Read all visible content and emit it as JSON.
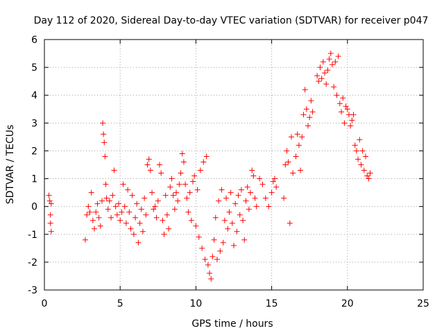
{
  "chart_data": {
    "type": "scatter",
    "title": "Day 112 of 2020, Sidereal Day-to-day VTEC variation (SDTVAR) for receiver p047",
    "xlabel": "GPS time / hours",
    "ylabel": "SDTVAR / TECUs",
    "xlim": [
      0,
      25
    ],
    "ylim": [
      -3,
      6
    ],
    "xticks": [
      "0",
      "5",
      "10",
      "15",
      "20",
      "25"
    ],
    "yticks": [
      "-3",
      "-2",
      "-1",
      "0",
      "1",
      "2",
      "3",
      "4",
      "5",
      "6"
    ],
    "xtick_values": [
      0,
      5,
      10,
      15,
      20,
      25
    ],
    "ytick_values": [
      -3,
      -2,
      -1,
      0,
      1,
      2,
      3,
      4,
      5,
      6
    ],
    "grid": true,
    "marker": "+",
    "color": "#ff0000",
    "series": [
      {
        "name": "SDTVAR",
        "points": [
          [
            0.3,
            0.4
          ],
          [
            0.35,
            0.2
          ],
          [
            0.4,
            -0.3
          ],
          [
            0.4,
            -0.6
          ],
          [
            0.45,
            -0.9
          ],
          [
            0.45,
            0.1
          ],
          [
            2.7,
            -1.2
          ],
          [
            2.8,
            -0.3
          ],
          [
            2.9,
            0.0
          ],
          [
            3.0,
            -0.2
          ],
          [
            3.1,
            0.5
          ],
          [
            3.2,
            -0.5
          ],
          [
            3.3,
            -0.8
          ],
          [
            3.4,
            -0.2
          ],
          [
            3.5,
            0.1
          ],
          [
            3.6,
            -0.4
          ],
          [
            3.7,
            -0.7
          ],
          [
            3.8,
            0.2
          ],
          [
            3.85,
            3.0
          ],
          [
            3.9,
            2.6
          ],
          [
            3.95,
            2.3
          ],
          [
            4.0,
            1.8
          ],
          [
            4.05,
            0.8
          ],
          [
            4.1,
            0.3
          ],
          [
            4.2,
            -0.1
          ],
          [
            4.3,
            0.2
          ],
          [
            4.4,
            -0.4
          ],
          [
            4.5,
            0.4
          ],
          [
            4.6,
            1.3
          ],
          [
            4.7,
            0.0
          ],
          [
            4.8,
            -0.3
          ],
          [
            4.9,
            0.1
          ],
          [
            5.0,
            -0.5
          ],
          [
            5.1,
            -0.2
          ],
          [
            5.2,
            0.8
          ],
          [
            5.3,
            0.0
          ],
          [
            5.4,
            -0.6
          ],
          [
            5.5,
            0.6
          ],
          [
            5.6,
            -0.2
          ],
          [
            5.7,
            -0.8
          ],
          [
            5.8,
            0.4
          ],
          [
            5.9,
            -1.0
          ],
          [
            6.0,
            -0.4
          ],
          [
            6.1,
            0.1
          ],
          [
            6.2,
            -1.3
          ],
          [
            6.3,
            -0.6
          ],
          [
            6.4,
            -0.1
          ],
          [
            6.5,
            -0.9
          ],
          [
            6.6,
            0.3
          ],
          [
            6.7,
            -0.3
          ],
          [
            6.8,
            1.5
          ],
          [
            6.9,
            1.7
          ],
          [
            7.0,
            1.3
          ],
          [
            7.1,
            0.5
          ],
          [
            7.2,
            -0.1
          ],
          [
            7.3,
            0.0
          ],
          [
            7.4,
            -0.4
          ],
          [
            7.5,
            0.2
          ],
          [
            7.6,
            1.5
          ],
          [
            7.7,
            1.2
          ],
          [
            7.8,
            -0.5
          ],
          [
            7.9,
            -1.0
          ],
          [
            8.0,
            0.4
          ],
          [
            8.1,
            -0.3
          ],
          [
            8.2,
            -0.8
          ],
          [
            8.3,
            0.7
          ],
          [
            8.4,
            1.0
          ],
          [
            8.5,
            0.4
          ],
          [
            8.6,
            -0.1
          ],
          [
            8.7,
            0.5
          ],
          [
            8.8,
            0.2
          ],
          [
            8.9,
            0.8
          ],
          [
            9.0,
            1.2
          ],
          [
            9.1,
            1.9
          ],
          [
            9.2,
            1.6
          ],
          [
            9.3,
            0.8
          ],
          [
            9.4,
            0.3
          ],
          [
            9.5,
            -0.2
          ],
          [
            9.6,
            0.5
          ],
          [
            9.7,
            -0.5
          ],
          [
            9.8,
            0.9
          ],
          [
            9.9,
            1.1
          ],
          [
            10.0,
            -0.7
          ],
          [
            10.1,
            0.6
          ],
          [
            10.2,
            -1.1
          ],
          [
            10.3,
            1.3
          ],
          [
            10.4,
            -1.5
          ],
          [
            10.5,
            1.6
          ],
          [
            10.6,
            -1.9
          ],
          [
            10.7,
            1.8
          ],
          [
            10.8,
            -2.1
          ],
          [
            10.9,
            -2.4
          ],
          [
            11.0,
            -2.6
          ],
          [
            11.1,
            -1.8
          ],
          [
            11.2,
            -1.2
          ],
          [
            11.3,
            -0.4
          ],
          [
            11.4,
            -1.9
          ],
          [
            11.5,
            0.2
          ],
          [
            11.6,
            -1.6
          ],
          [
            11.7,
            0.6
          ],
          [
            11.8,
            -1.3
          ],
          [
            11.9,
            -0.5
          ],
          [
            12.0,
            0.3
          ],
          [
            12.1,
            -0.8
          ],
          [
            12.2,
            -0.2
          ],
          [
            12.3,
            0.5
          ],
          [
            12.4,
            -0.6
          ],
          [
            12.5,
            -1.4
          ],
          [
            12.6,
            0.1
          ],
          [
            12.7,
            -0.9
          ],
          [
            12.8,
            0.4
          ],
          [
            12.9,
            -0.3
          ],
          [
            13.0,
            0.6
          ],
          [
            13.1,
            -0.5
          ],
          [
            13.2,
            -1.2
          ],
          [
            13.3,
            0.2
          ],
          [
            13.4,
            0.7
          ],
          [
            13.5,
            -0.1
          ],
          [
            13.6,
            0.5
          ],
          [
            13.7,
            1.3
          ],
          [
            13.8,
            1.1
          ],
          [
            13.9,
            0.3
          ],
          [
            14.0,
            0.0
          ],
          [
            14.2,
            1.0
          ],
          [
            14.4,
            0.8
          ],
          [
            14.6,
            0.3
          ],
          [
            14.8,
            0.0
          ],
          [
            15.0,
            0.5
          ],
          [
            15.1,
            0.9
          ],
          [
            15.2,
            1.0
          ],
          [
            15.3,
            0.7
          ],
          [
            15.8,
            0.3
          ],
          [
            15.9,
            1.5
          ],
          [
            16.0,
            2.0
          ],
          [
            16.1,
            1.6
          ],
          [
            16.2,
            -0.6
          ],
          [
            16.3,
            2.5
          ],
          [
            16.4,
            1.2
          ],
          [
            16.6,
            1.8
          ],
          [
            16.7,
            2.6
          ],
          [
            16.8,
            2.2
          ],
          [
            16.9,
            1.3
          ],
          [
            17.0,
            2.5
          ],
          [
            17.1,
            3.3
          ],
          [
            17.2,
            4.2
          ],
          [
            17.3,
            3.5
          ],
          [
            17.4,
            2.9
          ],
          [
            17.5,
            3.2
          ],
          [
            17.6,
            3.8
          ],
          [
            17.7,
            3.4
          ],
          [
            18.0,
            4.7
          ],
          [
            18.1,
            4.5
          ],
          [
            18.2,
            5.0
          ],
          [
            18.3,
            4.6
          ],
          [
            18.4,
            5.2
          ],
          [
            18.5,
            4.8
          ],
          [
            18.6,
            4.4
          ],
          [
            18.7,
            4.9
          ],
          [
            18.8,
            5.3
          ],
          [
            18.9,
            5.5
          ],
          [
            19.0,
            5.1
          ],
          [
            19.1,
            4.3
          ],
          [
            19.2,
            5.2
          ],
          [
            19.3,
            4.0
          ],
          [
            19.4,
            5.4
          ],
          [
            19.5,
            3.7
          ],
          [
            19.6,
            3.4
          ],
          [
            19.7,
            3.9
          ],
          [
            19.8,
            3.0
          ],
          [
            19.9,
            3.6
          ],
          [
            20.0,
            3.5
          ],
          [
            20.1,
            3.3
          ],
          [
            20.2,
            2.9
          ],
          [
            20.3,
            3.1
          ],
          [
            20.4,
            3.3
          ],
          [
            20.5,
            2.2
          ],
          [
            20.6,
            2.0
          ],
          [
            20.7,
            1.7
          ],
          [
            20.8,
            2.4
          ],
          [
            20.9,
            1.5
          ],
          [
            21.0,
            2.0
          ],
          [
            21.1,
            1.3
          ],
          [
            21.2,
            1.8
          ],
          [
            21.3,
            1.1
          ],
          [
            21.4,
            1.0
          ],
          [
            21.5,
            1.2
          ]
        ]
      }
    ]
  }
}
